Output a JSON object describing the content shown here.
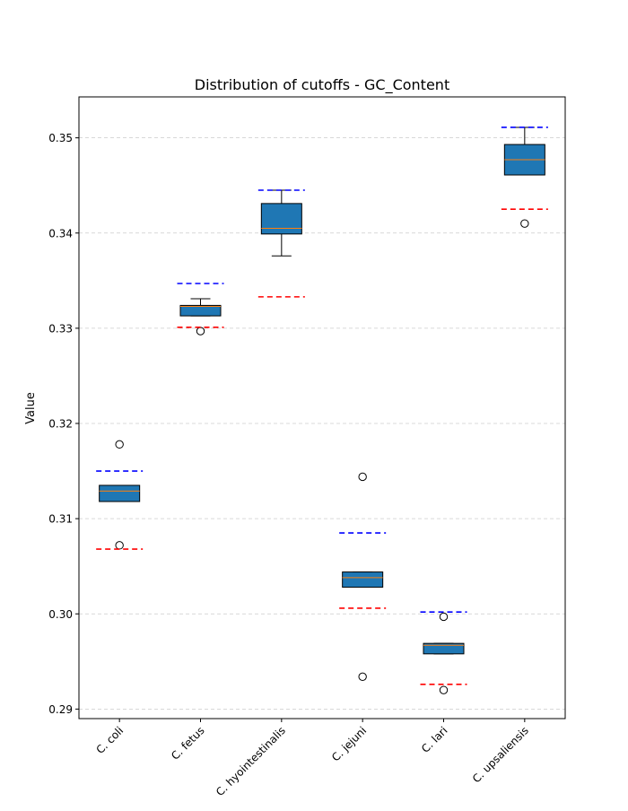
{
  "chart_data": {
    "type": "box",
    "title": "Distribution of cutoffs - GC_Content",
    "xlabel": "",
    "ylabel": "Value",
    "ylim": [
      0.289,
      0.3543
    ],
    "yticks": [
      0.29,
      0.3,
      0.31,
      0.32,
      0.33,
      0.34,
      0.35
    ],
    "ytick_labels": [
      "0.29",
      "0.30",
      "0.31",
      "0.32",
      "0.33",
      "0.34",
      "0.35"
    ],
    "grid": "y-dashed",
    "box_color": "#1f77b4",
    "median_color": "#ff7f0e",
    "upper_line_color": "#0000ff",
    "lower_line_color": "#ff0000",
    "categories": [
      "C. coli",
      "C. fetus",
      "C. hyointestinalis",
      "C. jejuni",
      "C. lari",
      "C. upsaliensis"
    ],
    "boxes": [
      {
        "label": "C. coli",
        "whisker_low": 0.3118,
        "q1": 0.3118,
        "median": 0.3129,
        "q3": 0.3135,
        "whisker_high": 0.3135,
        "outliers": [
          0.3178,
          0.3072
        ],
        "upper_cutoff": 0.315,
        "lower_cutoff": 0.3068
      },
      {
        "label": "C. fetus",
        "whisker_low": 0.3313,
        "q1": 0.3313,
        "median": 0.3323,
        "q3": 0.3324,
        "whisker_high": 0.3331,
        "outliers": [
          0.3297
        ],
        "upper_cutoff": 0.3347,
        "lower_cutoff": 0.3301
      },
      {
        "label": "C. hyointestinalis",
        "whisker_low": 0.3376,
        "q1": 0.3399,
        "median": 0.3405,
        "q3": 0.3431,
        "whisker_high": 0.3445,
        "outliers": [],
        "upper_cutoff": 0.3445,
        "lower_cutoff": 0.3333
      },
      {
        "label": "C. jejuni",
        "whisker_low": 0.3028,
        "q1": 0.3028,
        "median": 0.3038,
        "q3": 0.3044,
        "whisker_high": 0.3044,
        "outliers": [
          0.3144,
          0.2934
        ],
        "upper_cutoff": 0.3085,
        "lower_cutoff": 0.3006
      },
      {
        "label": "C. lari",
        "whisker_low": 0.2958,
        "q1": 0.2958,
        "median": 0.2967,
        "q3": 0.2969,
        "whisker_high": 0.2969,
        "outliers": [
          0.2997,
          0.292
        ],
        "upper_cutoff": 0.3002,
        "lower_cutoff": 0.2926
      },
      {
        "label": "C. upsaliensis",
        "whisker_low": 0.3461,
        "q1": 0.3461,
        "median": 0.3477,
        "q3": 0.3493,
        "whisker_high": 0.3511,
        "outliers": [
          0.341
        ],
        "upper_cutoff": 0.3511,
        "lower_cutoff": 0.3425
      }
    ]
  }
}
